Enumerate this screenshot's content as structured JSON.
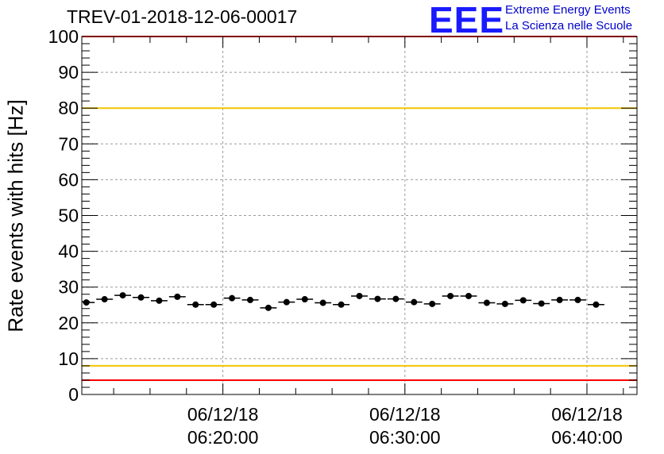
{
  "title": "TREV-01-2018-12-06-00017",
  "logo": {
    "mark": "EEE",
    "line1": "Extreme Energy Events",
    "line2": "La Scienza nelle Scuole"
  },
  "chart_data": {
    "type": "scatter",
    "ylabel": "Rate events with hits [Hz]",
    "ylim": [
      0,
      100
    ],
    "yticks": [
      0,
      10,
      20,
      30,
      40,
      50,
      60,
      70,
      80,
      90,
      100
    ],
    "xlim_minutes": [
      "06:12:15",
      "06:42:45"
    ],
    "xticks": [
      {
        "time": "06:20:00",
        "date": "06/12/18"
      },
      {
        "time": "06:30:00",
        "date": "06/12/18"
      },
      {
        "time": "06:40:00",
        "date": "06/12/18"
      }
    ],
    "grid": true,
    "reference_lines": [
      {
        "y": 100,
        "color": "#ff0000"
      },
      {
        "y": 80,
        "color": "#f2c500"
      },
      {
        "y": 8,
        "color": "#f2c500"
      },
      {
        "y": 4,
        "color": "#ff0000"
      }
    ],
    "bin_width_seconds": 60,
    "series": [
      {
        "points": [
          {
            "x": "06:12:30",
            "y": 25.7
          },
          {
            "x": "06:13:30",
            "y": 26.6
          },
          {
            "x": "06:14:30",
            "y": 27.7
          },
          {
            "x": "06:15:30",
            "y": 27.1
          },
          {
            "x": "06:16:30",
            "y": 26.2
          },
          {
            "x": "06:17:30",
            "y": 27.3
          },
          {
            "x": "06:18:30",
            "y": 25.1
          },
          {
            "x": "06:19:30",
            "y": 25.1
          },
          {
            "x": "06:20:30",
            "y": 26.9
          },
          {
            "x": "06:21:30",
            "y": 26.4
          },
          {
            "x": "06:22:30",
            "y": 24.2
          },
          {
            "x": "06:23:30",
            "y": 25.8
          },
          {
            "x": "06:24:30",
            "y": 26.6
          },
          {
            "x": "06:25:30",
            "y": 25.6
          },
          {
            "x": "06:26:30",
            "y": 25.1
          },
          {
            "x": "06:27:30",
            "y": 27.5
          },
          {
            "x": "06:28:30",
            "y": 26.7
          },
          {
            "x": "06:29:30",
            "y": 26.7
          },
          {
            "x": "06:30:30",
            "y": 25.8
          },
          {
            "x": "06:31:30",
            "y": 25.3
          },
          {
            "x": "06:32:30",
            "y": 27.5
          },
          {
            "x": "06:33:30",
            "y": 27.5
          },
          {
            "x": "06:34:30",
            "y": 25.6
          },
          {
            "x": "06:35:30",
            "y": 25.3
          },
          {
            "x": "06:36:30",
            "y": 26.3
          },
          {
            "x": "06:37:30",
            "y": 25.4
          },
          {
            "x": "06:38:30",
            "y": 26.4
          },
          {
            "x": "06:39:30",
            "y": 26.4
          },
          {
            "x": "06:40:30",
            "y": 25.1
          }
        ]
      }
    ]
  }
}
